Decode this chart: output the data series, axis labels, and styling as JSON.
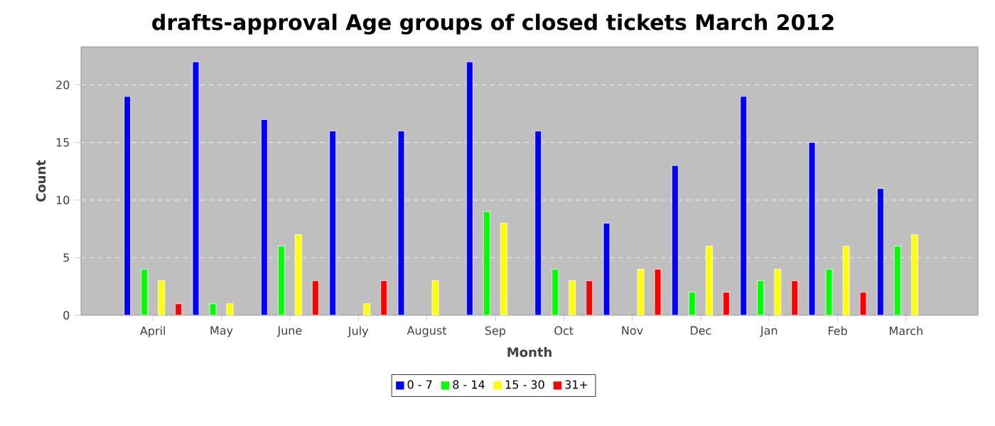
{
  "chart_data": {
    "type": "bar",
    "title": "drafts-approval Age groups of closed tickets March 2012",
    "xlabel": "Month",
    "ylabel": "Count",
    "categories": [
      "April",
      "May",
      "June",
      "July",
      "August",
      "Sep",
      "Oct",
      "Nov",
      "Dec",
      "Jan",
      "Feb",
      "March"
    ],
    "series": [
      {
        "name": "0 - 7",
        "color": "#0000ff",
        "values": [
          19,
          22,
          17,
          16,
          16,
          22,
          16,
          8,
          13,
          19,
          15,
          11
        ]
      },
      {
        "name": "8 - 14",
        "color": "#00ff00",
        "values": [
          4,
          1,
          6,
          null,
          null,
          9,
          4,
          null,
          2,
          3,
          4,
          6
        ]
      },
      {
        "name": "15 - 30",
        "color": "#ffff00",
        "values": [
          3,
          1,
          7,
          1,
          3,
          8,
          3,
          4,
          6,
          4,
          6,
          7
        ]
      },
      {
        "name": "31+",
        "color": "#ff0000",
        "values": [
          1,
          null,
          3,
          3,
          null,
          null,
          3,
          4,
          2,
          3,
          2,
          null
        ]
      }
    ],
    "ylim": [
      0,
      23.3
    ],
    "yticks": [
      0,
      5,
      10,
      15,
      20
    ],
    "grid": "y",
    "legend": "bottom"
  }
}
